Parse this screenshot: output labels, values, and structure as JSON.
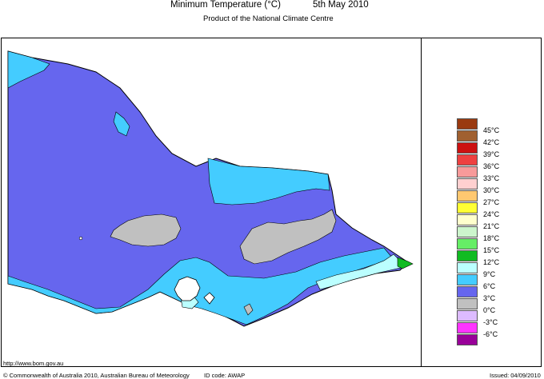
{
  "header": {
    "title": "Minimum Temperature (°C)",
    "date": "5th May 2010",
    "subtitle": "Product of the National Climate Centre"
  },
  "legend": [
    {
      "label": "45°C",
      "color": "#9a3a10"
    },
    {
      "label": "42°C",
      "color": "#a06030"
    },
    {
      "label": "39°C",
      "color": "#cc1111"
    },
    {
      "label": "36°C",
      "color": "#ee4040"
    },
    {
      "label": "33°C",
      "color": "#f79a9a"
    },
    {
      "label": "30°C",
      "color": "#ffd0d0"
    },
    {
      "label": "27°C",
      "color": "#ffc870"
    },
    {
      "label": "24°C",
      "color": "#ffff33"
    },
    {
      "label": "21°C",
      "color": "#ffffcc"
    },
    {
      "label": "18°C",
      "color": "#ccf5cc"
    },
    {
      "label": "15°C",
      "color": "#66ee66"
    },
    {
      "label": "12°C",
      "color": "#11bb22"
    },
    {
      "label": "9°C",
      "color": "#bbffff"
    },
    {
      "label": "6°C",
      "color": "#44ccff"
    },
    {
      "label": "3°C",
      "color": "#6666ee"
    },
    {
      "label": "0°C",
      "color": "#c0c0c0"
    },
    {
      "label": "-3°C",
      "color": "#ddbbff"
    },
    {
      "label": "-6°C",
      "color": "#ff33ff"
    },
    {
      "label": "",
      "color": "#990099"
    }
  ],
  "footer": {
    "url": "http://www.bom.gov.au",
    "copyright": "© Commonwealth of Australia 2010, Australian Bureau of Meteorology",
    "id_code": "ID code: AWAP",
    "issued": "Issued: 04/09/2010"
  }
}
